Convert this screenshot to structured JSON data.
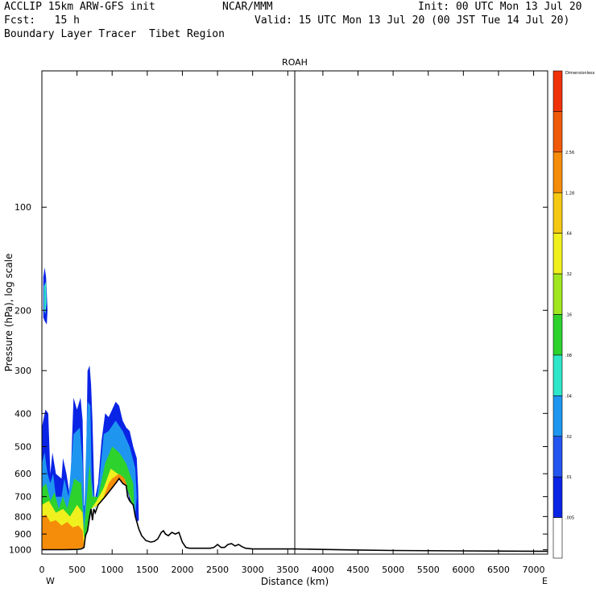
{
  "header": {
    "left_line1": "ACCLIP 15km ARW-GFS init",
    "center_line1": "NCAR/MMM",
    "right_line1": "Init: 00 UTC Mon 13 Jul 20",
    "left_line2": "Fcst:   15 h",
    "right_line2": "Valid: 15 UTC Mon 13 Jul 20 (00 JST Tue 14 Jul 20)",
    "line3": "Boundary Layer Tracer  Tibet Region"
  },
  "colors": {
    "levels": [
      "#ffffff",
      "#0a24e6",
      "#2356f0",
      "#1e96f0",
      "#2ee6c8",
      "#2dd22d",
      "#a0e61e",
      "#f0f01e",
      "#f5c814",
      "#f58c0a",
      "#f05a0a",
      "#f0320a"
    ],
    "terrain": "#000000"
  },
  "chart_data": {
    "type": "heatmap",
    "title": "ROAH",
    "xlabel": "Distance (km)",
    "ylabel": "Pressure (hPa), log scale",
    "x_left_label": "W",
    "x_right_label": "E",
    "xlim": [
      0,
      7200
    ],
    "ylim": [
      1030,
      40
    ],
    "y_scale": "log",
    "x_ticks": [
      "0",
      "500",
      "1000",
      "1500",
      "2000",
      "2500",
      "3000",
      "3500",
      "4000",
      "4500",
      "5000",
      "5500",
      "6000",
      "6500",
      "7000"
    ],
    "x_tick_values": [
      0,
      500,
      1000,
      1500,
      2000,
      2500,
      3000,
      3500,
      4000,
      4500,
      5000,
      5500,
      6000,
      6500,
      7000
    ],
    "y_ticks": [
      "100",
      "200",
      "300",
      "400",
      "500",
      "600",
      "700",
      "800",
      "900",
      "1000"
    ],
    "y_tick_values": [
      100,
      200,
      300,
      400,
      500,
      600,
      700,
      800,
      900,
      1000
    ],
    "marker_line_x": 3600,
    "colorbar": {
      "title": "Dimensionless",
      "labels": [
        ".005",
        ".01",
        ".02",
        ".04",
        ".08",
        ".16",
        ".32",
        ".64",
        "1.28",
        "2.56"
      ]
    },
    "terrain_profile": [
      [
        0,
        1000
      ],
      [
        100,
        1000
      ],
      [
        300,
        1000
      ],
      [
        500,
        998
      ],
      [
        560,
        995
      ],
      [
        600,
        985
      ],
      [
        620,
        910
      ],
      [
        650,
        880
      ],
      [
        680,
        800
      ],
      [
        700,
        760
      ],
      [
        720,
        820
      ],
      [
        740,
        760
      ],
      [
        760,
        780
      ],
      [
        800,
        740
      ],
      [
        850,
        720
      ],
      [
        900,
        700
      ],
      [
        950,
        680
      ],
      [
        1000,
        660
      ],
      [
        1050,
        640
      ],
      [
        1100,
        620
      ],
      [
        1150,
        640
      ],
      [
        1200,
        650
      ],
      [
        1220,
        700
      ],
      [
        1250,
        720
      ],
      [
        1300,
        740
      ],
      [
        1330,
        800
      ],
      [
        1380,
        870
      ],
      [
        1420,
        910
      ],
      [
        1480,
        940
      ],
      [
        1550,
        950
      ],
      [
        1600,
        945
      ],
      [
        1650,
        930
      ],
      [
        1700,
        890
      ],
      [
        1730,
        880
      ],
      [
        1760,
        900
      ],
      [
        1800,
        910
      ],
      [
        1850,
        890
      ],
      [
        1900,
        900
      ],
      [
        1950,
        890
      ],
      [
        2000,
        950
      ],
      [
        2050,
        985
      ],
      [
        2100,
        990
      ],
      [
        2200,
        990
      ],
      [
        2300,
        990
      ],
      [
        2400,
        990
      ],
      [
        2450,
        985
      ],
      [
        2500,
        965
      ],
      [
        2550,
        985
      ],
      [
        2600,
        985
      ],
      [
        2650,
        965
      ],
      [
        2700,
        960
      ],
      [
        2750,
        975
      ],
      [
        2800,
        965
      ],
      [
        2850,
        980
      ],
      [
        2900,
        990
      ],
      [
        3000,
        995
      ],
      [
        3600,
        995
      ],
      [
        4000,
        998
      ],
      [
        4500,
        1002
      ],
      [
        5000,
        1005
      ],
      [
        6000,
        1008
      ],
      [
        7000,
        1010
      ],
      [
        7200,
        1010
      ]
    ],
    "tracer_regions": [
      {
        "level": 1,
        "polygon": [
          [
            0,
            1000
          ],
          [
            0,
            440
          ],
          [
            50,
            390
          ],
          [
            90,
            400
          ],
          [
            120,
            600
          ],
          [
            150,
            520
          ],
          [
            200,
            600
          ],
          [
            280,
            620
          ],
          [
            300,
            540
          ],
          [
            350,
            600
          ],
          [
            400,
            700
          ],
          [
            450,
            360
          ],
          [
            500,
            390
          ],
          [
            550,
            360
          ],
          [
            580,
            420
          ],
          [
            600,
            740
          ],
          [
            620,
            760
          ],
          [
            650,
            300
          ],
          [
            680,
            290
          ],
          [
            700,
            330
          ],
          [
            720,
            420
          ],
          [
            750,
            720
          ],
          [
            800,
            640
          ],
          [
            850,
            480
          ],
          [
            900,
            400
          ],
          [
            950,
            410
          ],
          [
            1000,
            390
          ],
          [
            1050,
            370
          ],
          [
            1100,
            380
          ],
          [
            1150,
            420
          ],
          [
            1200,
            440
          ],
          [
            1250,
            450
          ],
          [
            1300,
            500
          ],
          [
            1350,
            540
          ],
          [
            1370,
            660
          ],
          [
            1380,
            820
          ],
          [
            1350,
            830
          ],
          [
            1300,
            740
          ],
          [
            1250,
            720
          ],
          [
            1200,
            650
          ],
          [
            1100,
            620
          ],
          [
            1000,
            660
          ],
          [
            900,
            700
          ],
          [
            800,
            740
          ],
          [
            700,
            760
          ],
          [
            600,
            985
          ],
          [
            400,
            1000
          ]
        ]
      },
      {
        "level": 1,
        "polygon": [
          [
            20,
            210
          ],
          [
            20,
            160
          ],
          [
            40,
            150
          ],
          [
            60,
            160
          ],
          [
            80,
            200
          ],
          [
            70,
            220
          ],
          [
            40,
            215
          ]
        ]
      },
      {
        "level": 3,
        "polygon": [
          [
            0,
            1000
          ],
          [
            0,
            560
          ],
          [
            40,
            520
          ],
          [
            80,
            600
          ],
          [
            120,
            640
          ],
          [
            160,
            600
          ],
          [
            200,
            700
          ],
          [
            280,
            700
          ],
          [
            320,
            620
          ],
          [
            380,
            700
          ],
          [
            450,
            460
          ],
          [
            540,
            440
          ],
          [
            580,
            560
          ],
          [
            600,
            820
          ],
          [
            650,
            370
          ],
          [
            690,
            380
          ],
          [
            710,
            620
          ],
          [
            760,
            760
          ],
          [
            820,
            620
          ],
          [
            880,
            460
          ],
          [
            950,
            450
          ],
          [
            1050,
            420
          ],
          [
            1150,
            450
          ],
          [
            1250,
            500
          ],
          [
            1330,
            580
          ],
          [
            1350,
            700
          ],
          [
            1330,
            790
          ],
          [
            1280,
            730
          ],
          [
            1200,
            650
          ],
          [
            1100,
            620
          ],
          [
            1000,
            660
          ],
          [
            900,
            700
          ],
          [
            800,
            740
          ],
          [
            700,
            760
          ],
          [
            600,
            985
          ],
          [
            400,
            1000
          ]
        ]
      },
      {
        "level": 4,
        "polygon": [
          [
            30,
            200
          ],
          [
            30,
            170
          ],
          [
            60,
            165
          ],
          [
            65,
            190
          ],
          [
            50,
            205
          ]
        ]
      },
      {
        "level": 5,
        "polygon": [
          [
            0,
            1000
          ],
          [
            0,
            660
          ],
          [
            60,
            640
          ],
          [
            120,
            720
          ],
          [
            180,
            680
          ],
          [
            240,
            760
          ],
          [
            300,
            700
          ],
          [
            360,
            760
          ],
          [
            460,
            620
          ],
          [
            560,
            640
          ],
          [
            600,
            880
          ],
          [
            680,
            560
          ],
          [
            720,
            700
          ],
          [
            800,
            700
          ],
          [
            900,
            560
          ],
          [
            1000,
            500
          ],
          [
            1100,
            520
          ],
          [
            1200,
            560
          ],
          [
            1300,
            640
          ],
          [
            1320,
            760
          ],
          [
            1280,
            730
          ],
          [
            1200,
            650
          ],
          [
            1100,
            620
          ],
          [
            1000,
            660
          ],
          [
            900,
            700
          ],
          [
            800,
            740
          ],
          [
            700,
            760
          ],
          [
            600,
            985
          ],
          [
            400,
            1000
          ]
        ]
      },
      {
        "level": 7,
        "polygon": [
          [
            0,
            1000
          ],
          [
            0,
            740
          ],
          [
            100,
            720
          ],
          [
            200,
            780
          ],
          [
            300,
            760
          ],
          [
            400,
            800
          ],
          [
            500,
            740
          ],
          [
            580,
            780
          ],
          [
            600,
            920
          ],
          [
            650,
            880
          ],
          [
            680,
            800
          ],
          [
            700,
            760
          ],
          [
            780,
            720
          ],
          [
            880,
            660
          ],
          [
            980,
            580
          ],
          [
            1080,
            600
          ],
          [
            1180,
            640
          ],
          [
            1260,
            700
          ],
          [
            1280,
            730
          ],
          [
            1200,
            650
          ],
          [
            1100,
            620
          ],
          [
            1000,
            660
          ],
          [
            900,
            700
          ],
          [
            800,
            740
          ],
          [
            700,
            760
          ],
          [
            600,
            985
          ],
          [
            400,
            1000
          ]
        ]
      },
      {
        "level": 9,
        "polygon": [
          [
            0,
            1000
          ],
          [
            0,
            800
          ],
          [
            60,
            790
          ],
          [
            120,
            830
          ],
          [
            200,
            820
          ],
          [
            280,
            850
          ],
          [
            360,
            830
          ],
          [
            440,
            860
          ],
          [
            520,
            850
          ],
          [
            580,
            880
          ],
          [
            600,
            985
          ],
          [
            400,
            1000
          ]
        ]
      },
      {
        "level": 9,
        "polygon": [
          [
            880,
            700
          ],
          [
            950,
            640
          ],
          [
            1000,
            620
          ],
          [
            1100,
            600
          ],
          [
            1180,
            620
          ],
          [
            1220,
            660
          ],
          [
            1200,
            650
          ],
          [
            1100,
            620
          ],
          [
            1000,
            660
          ],
          [
            900,
            700
          ]
        ]
      }
    ]
  }
}
